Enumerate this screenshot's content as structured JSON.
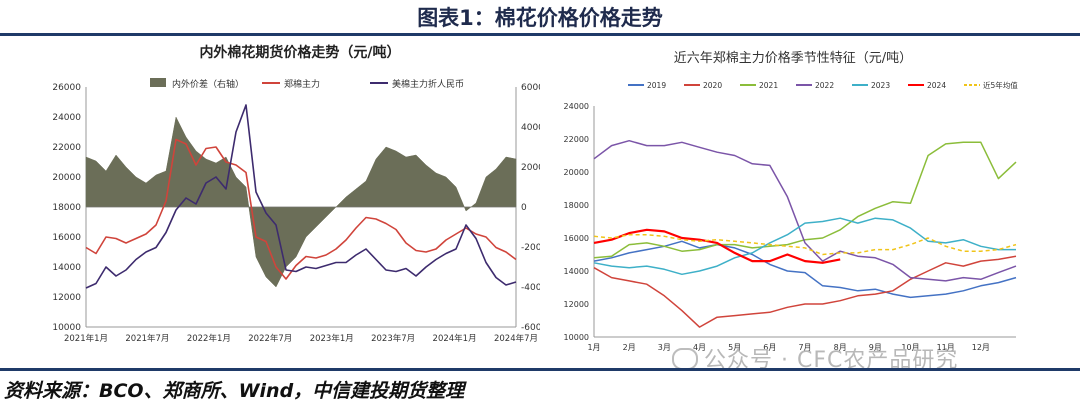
{
  "figure_title": "图表1：棉花价格价格走势",
  "source_text": "资料来源：BCO、郑商所、Wind，中信建投期货整理",
  "watermark_text": "公众号 · CFC农产品研究",
  "colors": {
    "dark_blue": "#1f3a68",
    "spread": "#6b6e58",
    "zce": "#d0443b",
    "ice": "#3d2b6e"
  },
  "chart_data": [
    {
      "type": "line",
      "title": "内外棉花期货价格走势（元/吨）",
      "legend_position": "top",
      "legend": [
        "内外价差（右轴）",
        "郑棉主力",
        "美棉主力折人民币"
      ],
      "y_left": {
        "min": 10000,
        "max": 26000,
        "ticks": [
          "26000",
          "24000",
          "22000",
          "20000",
          "18000",
          "16000",
          "14000",
          "12000",
          "10000"
        ]
      },
      "y_right": {
        "min": -6000,
        "max": 6000,
        "ticks": [
          "6000",
          "4000",
          "2000",
          "0",
          "-2000",
          "-4000",
          "-6000"
        ]
      },
      "x_ticks": [
        "2021年1月",
        "2021年7月",
        "2022年1月",
        "2022年7月",
        "2023年1月",
        "2023年7月",
        "2024年1月",
        "2024年7月"
      ],
      "x_range": [
        0,
        43
      ],
      "series": [
        {
          "name": "内外价差（右轴）",
          "axis": "right",
          "kind": "area",
          "x": [
            0,
            1,
            2,
            3,
            4,
            5,
            6,
            7,
            8,
            9,
            10,
            11,
            12,
            13,
            14,
            15,
            16,
            17,
            18,
            19,
            20,
            21,
            22,
            23,
            24,
            25,
            26,
            27,
            28,
            29,
            30,
            31,
            32,
            33,
            34,
            35,
            36,
            37,
            38,
            39,
            40,
            41,
            42,
            43
          ],
          "values": [
            2500,
            2300,
            1800,
            2600,
            2000,
            1500,
            1200,
            1600,
            1800,
            4500,
            3500,
            2800,
            2400,
            2200,
            2500,
            1500,
            1000,
            -2500,
            -3500,
            -4000,
            -3000,
            -2500,
            -1500,
            -1000,
            -500,
            0,
            500,
            900,
            1300,
            2400,
            3000,
            2800,
            2500,
            2600,
            2100,
            1700,
            1500,
            1000,
            -200,
            200,
            1500,
            1900,
            2500,
            2400
          ]
        },
        {
          "name": "郑棉主力",
          "axis": "left",
          "kind": "line",
          "x": [
            0,
            1,
            2,
            3,
            4,
            5,
            6,
            7,
            8,
            9,
            10,
            11,
            12,
            13,
            14,
            15,
            16,
            17,
            18,
            19,
            20,
            21,
            22,
            23,
            24,
            25,
            26,
            27,
            28,
            29,
            30,
            31,
            32,
            33,
            34,
            35,
            36,
            37,
            38,
            39,
            40,
            41,
            42,
            43
          ],
          "values": [
            15300,
            14900,
            16000,
            15900,
            15600,
            15900,
            16200,
            16800,
            18400,
            22500,
            22200,
            20800,
            21900,
            22000,
            21000,
            20800,
            20300,
            16000,
            15700,
            14000,
            13200,
            14100,
            14700,
            14600,
            14800,
            15200,
            15800,
            16600,
            17300,
            17200,
            16900,
            16500,
            15600,
            15100,
            15000,
            15200,
            15800,
            16200,
            16600,
            16200,
            16000,
            15300,
            15000,
            14500
          ]
        },
        {
          "name": "美棉主力折人民币",
          "axis": "left",
          "kind": "line",
          "x": [
            0,
            1,
            2,
            3,
            4,
            5,
            6,
            7,
            8,
            9,
            10,
            11,
            12,
            13,
            14,
            15,
            16,
            17,
            18,
            19,
            20,
            21,
            22,
            23,
            24,
            25,
            26,
            27,
            28,
            29,
            30,
            31,
            32,
            33,
            34,
            35,
            36,
            37,
            38,
            39,
            40,
            41,
            42,
            43
          ],
          "values": [
            12600,
            12900,
            14000,
            13400,
            13800,
            14500,
            15000,
            15300,
            16300,
            17800,
            18600,
            18200,
            19600,
            20000,
            19200,
            23000,
            24800,
            19000,
            17600,
            16800,
            13800,
            13700,
            14000,
            13900,
            14100,
            14300,
            14300,
            14800,
            15200,
            14500,
            13800,
            13700,
            13900,
            13400,
            14000,
            14500,
            14900,
            15200,
            16800,
            15900,
            14300,
            13300,
            12800,
            13000
          ]
        }
      ]
    },
    {
      "type": "line",
      "title": "近六年郑棉主力价格季节性特征（元/吨）",
      "legend_position": "top",
      "legend": [
        "2019",
        "2020",
        "2021",
        "2022",
        "2023",
        "2024",
        "近5年均值"
      ],
      "y": {
        "min": 10000,
        "max": 24000,
        "ticks": [
          "24000",
          "22000",
          "20000",
          "18000",
          "16000",
          "14000",
          "12000",
          "10000"
        ]
      },
      "x_ticks": [
        "1月",
        "2月",
        "3月",
        "4月",
        "5月",
        "6月",
        "7月",
        "8月",
        "9月",
        "10月",
        "11月",
        "12月"
      ],
      "x_range": [
        1,
        13
      ],
      "series": [
        {
          "name": "2019",
          "x": [
            1,
            1.5,
            2,
            2.5,
            3,
            3.5,
            4,
            4.5,
            5,
            5.5,
            6,
            6.5,
            7,
            7.5,
            8,
            8.5,
            9,
            9.5,
            10,
            10.5,
            11,
            11.5,
            12,
            12.5,
            13
          ],
          "values": [
            14600,
            14800,
            15100,
            15300,
            15500,
            15800,
            15400,
            15600,
            15400,
            15000,
            14400,
            14000,
            13900,
            13100,
            13000,
            12800,
            12900,
            12600,
            12400,
            12500,
            12600,
            12800,
            13100,
            13300,
            13600
          ]
        },
        {
          "name": "2020",
          "x": [
            1,
            1.5,
            2,
            2.5,
            3,
            3.5,
            4,
            4.5,
            5,
            5.5,
            6,
            6.5,
            7,
            7.5,
            8,
            8.5,
            9,
            9.5,
            10,
            10.5,
            11,
            11.5,
            12,
            12.5,
            13
          ],
          "values": [
            14200,
            13600,
            13400,
            13200,
            12500,
            11600,
            10600,
            11200,
            11300,
            11400,
            11500,
            11800,
            12000,
            12000,
            12200,
            12500,
            12600,
            12800,
            13500,
            14000,
            14500,
            14300,
            14600,
            14700,
            14900
          ]
        },
        {
          "name": "2021",
          "x": [
            1,
            1.5,
            2,
            2.5,
            3,
            3.5,
            4,
            4.5,
            5,
            5.5,
            6,
            6.5,
            7,
            7.5,
            8,
            8.5,
            9,
            9.5,
            10,
            10.5,
            11,
            11.5,
            12,
            12.5,
            13
          ],
          "values": [
            14800,
            14900,
            15600,
            15700,
            15500,
            15200,
            15300,
            15600,
            15600,
            15400,
            15500,
            15600,
            15900,
            16000,
            16500,
            17300,
            17800,
            18200,
            18100,
            21000,
            21700,
            21800,
            21800,
            19600,
            20600
          ]
        },
        {
          "name": "2022",
          "x": [
            1,
            1.5,
            2,
            2.5,
            3,
            3.5,
            4,
            4.5,
            5,
            5.5,
            6,
            6.5,
            7,
            7.5,
            8,
            8.5,
            9,
            9.5,
            10,
            10.5,
            11,
            11.5,
            12,
            12.5,
            13
          ],
          "values": [
            20800,
            21600,
            21900,
            21600,
            21600,
            21800,
            21500,
            21200,
            21000,
            20500,
            20400,
            18500,
            15700,
            14600,
            15200,
            14900,
            14800,
            14400,
            13600,
            13500,
            13400,
            13600,
            13500,
            13900,
            14300
          ]
        },
        {
          "name": "2023",
          "x": [
            1,
            1.5,
            2,
            2.5,
            3,
            3.5,
            4,
            4.5,
            5,
            5.5,
            6,
            6.5,
            7,
            7.5,
            8,
            8.5,
            9,
            9.5,
            10,
            10.5,
            11,
            11.5,
            12,
            12.5,
            13
          ],
          "values": [
            14500,
            14300,
            14200,
            14300,
            14100,
            13800,
            14000,
            14300,
            14800,
            15100,
            15700,
            16200,
            16900,
            17000,
            17200,
            16900,
            17200,
            17100,
            16600,
            15800,
            15700,
            15900,
            15500,
            15300,
            15300
          ]
        },
        {
          "name": "2024",
          "x": [
            1,
            1.5,
            2,
            2.5,
            3,
            3.5,
            4,
            4.5,
            5,
            5.5,
            6,
            6.5,
            7,
            7.5,
            8
          ],
          "values": [
            15700,
            15900,
            16300,
            16500,
            16400,
            16000,
            15900,
            15700,
            15100,
            14600,
            14600,
            15000,
            14600,
            14500,
            14700
          ]
        },
        {
          "name": "近5年均值",
          "x": [
            1,
            1.5,
            2,
            2.5,
            3,
            3.5,
            4,
            4.5,
            5,
            5.5,
            6,
            6.5,
            7,
            7.5,
            8,
            8.5,
            9,
            9.5,
            10,
            10.5,
            11,
            11.5,
            12,
            12.5,
            13
          ],
          "values": [
            16100,
            16000,
            16200,
            16200,
            16100,
            15900,
            15800,
            15900,
            15800,
            15700,
            15600,
            15500,
            15400,
            15000,
            15100,
            15100,
            15300,
            15300,
            15600,
            16000,
            15500,
            15200,
            15200,
            15300,
            15600
          ]
        }
      ],
      "series_colors": [
        "#4472c4",
        "#d0443b",
        "#8bbd3a",
        "#7b55a8",
        "#3eb0c8",
        "#ff0000",
        "#f0c419"
      ]
    }
  ]
}
